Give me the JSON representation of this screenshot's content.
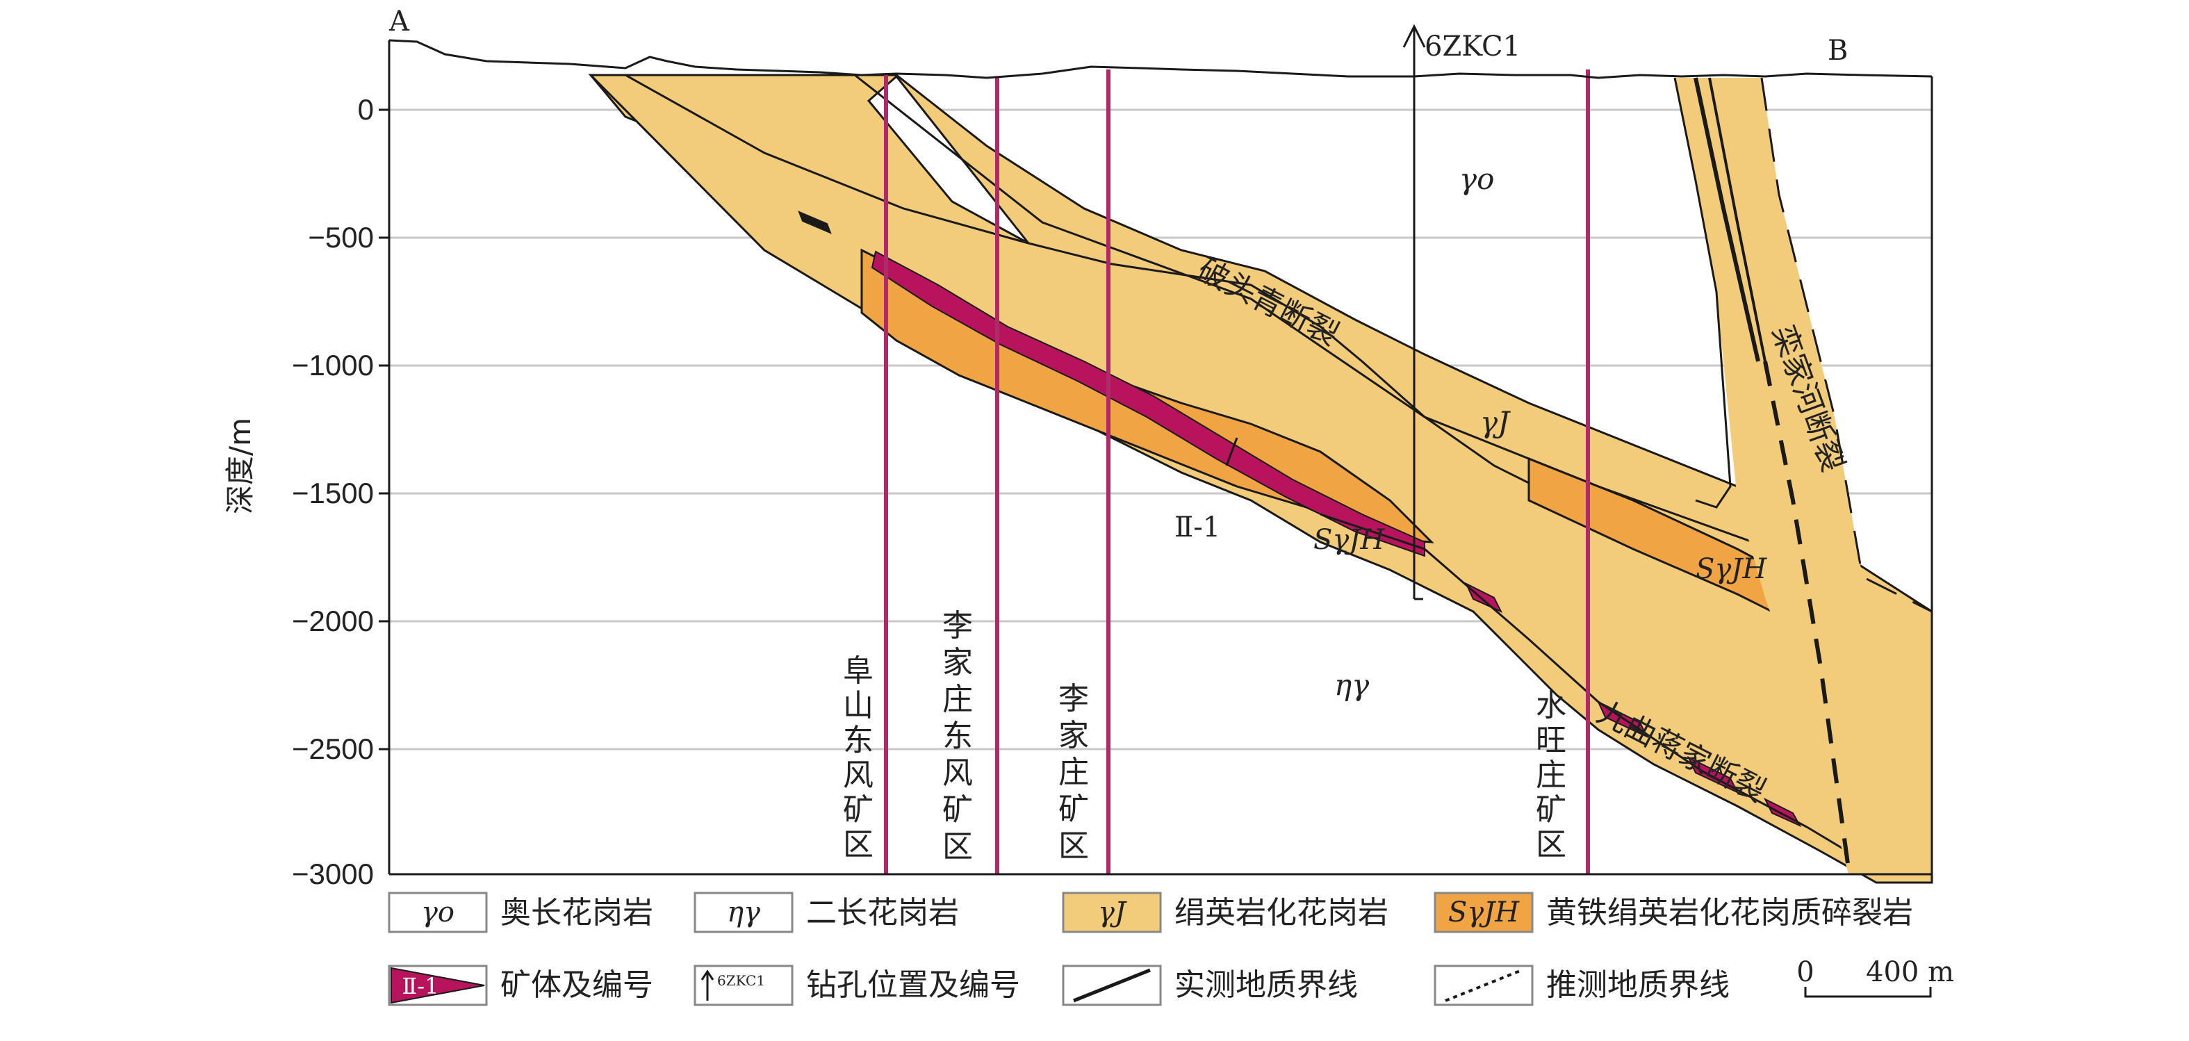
{
  "section": {
    "start_label": "A",
    "end_label": "B",
    "y_axis_label": "深度/m",
    "y_ticks": [
      "0",
      "−500",
      "−1000",
      "−1500",
      "−2000",
      "−2500",
      "−3000"
    ]
  },
  "drill_hole": {
    "label": "6ZKC1"
  },
  "rock_labels": {
    "gamma_o": "γo",
    "eta_gamma": "ηγ",
    "gamma_j": "γJ",
    "sgjh_1": "SγJH",
    "sgjh_2": "SγJH"
  },
  "fault_labels": {
    "potouqing": "破头青断裂",
    "luanjiahe": "栾家河断裂",
    "jiuqu": "九曲蒋家断裂"
  },
  "ore_body": {
    "label": "Ⅱ-1"
  },
  "mining_areas": [
    {
      "name": "阜山东风矿区",
      "chars": [
        "阜",
        "山",
        "东",
        "风",
        "矿",
        "区"
      ]
    },
    {
      "name": "李家庄东风矿区",
      "chars": [
        "李",
        "家",
        "庄",
        "东",
        "风",
        "矿",
        "区"
      ]
    },
    {
      "name": "李家庄矿区",
      "chars": [
        "李",
        "家",
        "庄",
        "矿",
        "区"
      ]
    },
    {
      "name": "水旺庄矿区",
      "chars": [
        "水",
        "旺",
        "庄",
        "矿",
        "区"
      ]
    }
  ],
  "legend": {
    "items": [
      {
        "symbol": "γo",
        "label": "奥长花岗岩",
        "fill": "#ffffff"
      },
      {
        "symbol": "ηγ",
        "label": "二长花岗岩",
        "fill": "#ffffff"
      },
      {
        "symbol": "γJ",
        "label": "绢英岩化花岗岩",
        "fill": "#f3cc7b"
      },
      {
        "symbol": "SγJH",
        "label": "黄铁绢英岩化花岗质碎裂岩",
        "fill": "#f0a444"
      },
      {
        "symbol": "Ⅱ-1",
        "label": "矿体及编号",
        "fill": "#b8145e"
      },
      {
        "symbol": "6ZKC1",
        "label": "钻孔位置及编号",
        "fill": "#ffffff"
      },
      {
        "symbol": "",
        "label": "实测地质界线",
        "fill": "#ffffff"
      },
      {
        "symbol": "",
        "label": "推测地质界线",
        "fill": "#ffffff"
      }
    ],
    "scale_zero": "0",
    "scale_value": "400 m"
  },
  "colors": {
    "light_alteration": "#f3cc7b",
    "dark_alteration": "#f0a444",
    "ore": "#b8145e",
    "mine_line": "#b02a6a",
    "grid": "#c8c8c8",
    "stroke": "#1a1a1a"
  }
}
